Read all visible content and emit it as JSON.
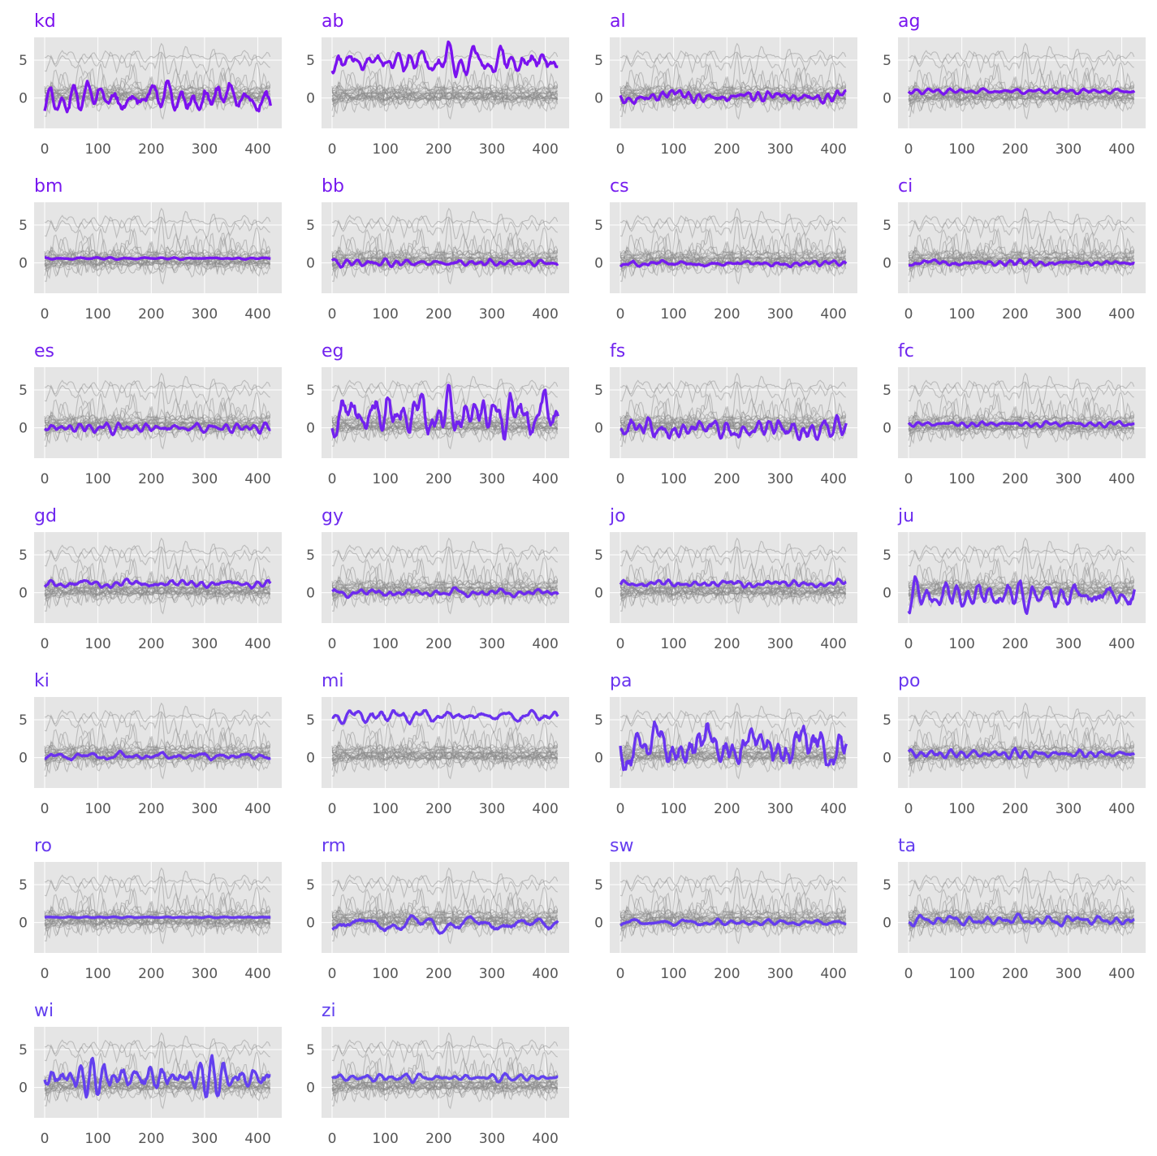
{
  "chart_data": {
    "type": "line",
    "layout": "small-multiples",
    "x_domain": [
      0,
      426
    ],
    "y_domain": [
      -4,
      8
    ],
    "xticks": [
      0,
      100,
      200,
      300,
      400
    ],
    "yticks": [
      0,
      5
    ],
    "grid": true,
    "legend": "none",
    "panel_bg": "#e5e5e5",
    "grid_color": "#ffffff",
    "background_series_color": "#888888",
    "panels": [
      {
        "title": "kd",
        "color": "#7b10ef",
        "level": 0.0,
        "spread": 1.5
      },
      {
        "title": "ab",
        "color": "#7a12ef",
        "level": 4.8,
        "spread": 1.3
      },
      {
        "title": "al",
        "color": "#7914ef",
        "level": 0.2,
        "spread": 0.6
      },
      {
        "title": "ag",
        "color": "#7816ef",
        "level": 0.9,
        "spread": 0.25
      },
      {
        "title": "bm",
        "color": "#7718ef",
        "level": 0.6,
        "spread": 0.1
      },
      {
        "title": "bb",
        "color": "#761aef",
        "level": 0.0,
        "spread": 0.35
      },
      {
        "title": "cs",
        "color": "#751cef",
        "level": -0.1,
        "spread": 0.35
      },
      {
        "title": "ci",
        "color": "#741eef",
        "level": 0.0,
        "spread": 0.35
      },
      {
        "title": "es",
        "color": "#7320ef",
        "level": 0.0,
        "spread": 0.45
      },
      {
        "title": "eg",
        "color": "#7222ef",
        "level": 1.8,
        "spread": 2.1
      },
      {
        "title": "fs",
        "color": "#7124ef",
        "level": -0.2,
        "spread": 1.0
      },
      {
        "title": "fc",
        "color": "#7026ef",
        "level": 0.5,
        "spread": 0.25
      },
      {
        "title": "gd",
        "color": "#6f28ef",
        "level": 1.2,
        "spread": 0.35
      },
      {
        "title": "gy",
        "color": "#6e2aef",
        "level": 0.0,
        "spread": 0.4
      },
      {
        "title": "jo",
        "color": "#6d2cef",
        "level": 1.2,
        "spread": 0.35
      },
      {
        "title": "ju",
        "color": "#6c2eef",
        "level": -0.4,
        "spread": 1.3
      },
      {
        "title": "ki",
        "color": "#6b30ef",
        "level": 0.2,
        "spread": 0.35
      },
      {
        "title": "mi",
        "color": "#6a32ef",
        "level": 5.5,
        "spread": 0.6
      },
      {
        "title": "pa",
        "color": "#6934ef",
        "level": 1.5,
        "spread": 2.3
      },
      {
        "title": "po",
        "color": "#6836ef",
        "level": 0.5,
        "spread": 0.45
      },
      {
        "title": "ro",
        "color": "#6738ef",
        "level": 0.7,
        "spread": 0.05
      },
      {
        "title": "rm",
        "color": "#663aef",
        "level": -0.2,
        "spread": 0.6
      },
      {
        "title": "sw",
        "color": "#653cef",
        "level": 0.0,
        "spread": 0.3
      },
      {
        "title": "ta",
        "color": "#643eef",
        "level": 0.3,
        "spread": 0.45
      },
      {
        "title": "wi",
        "color": "#6340ef",
        "level": 1.3,
        "spread": 1.4
      },
      {
        "title": "zi",
        "color": "#6242ef",
        "level": 1.3,
        "spread": 0.35
      }
    ]
  }
}
